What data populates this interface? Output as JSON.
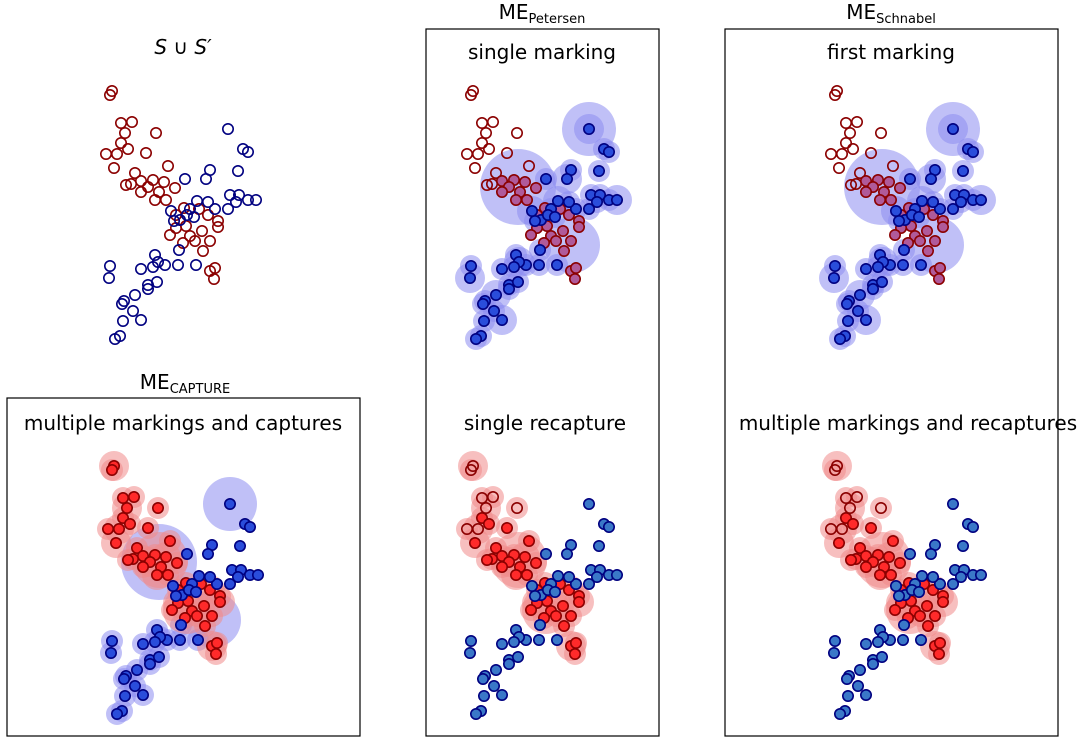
{
  "titles": {
    "union": "S ∪ S′",
    "me_capture": {
      "base": "ME",
      "sub": "CAPTURE"
    },
    "me_petersen": {
      "base": "ME",
      "sub": "Petersen"
    },
    "me_schnabel": {
      "base": "ME",
      "sub": "Schnabel"
    }
  },
  "subtitles": {
    "capture": "multiple markings and captures",
    "petersen_top": "single marking",
    "petersen_bottom": "single recapture",
    "schnabel_top": "first marking",
    "schnabel_bottom": "multiple markings and recaptures"
  },
  "colors": {
    "red_edge": "#8b0000",
    "red_fill": "#ff2a2a",
    "red_halo": "#f08a8a",
    "blue_edge": "#000080",
    "blue_fill": "#2a4ddb",
    "blue_fill_light": "#3a78c8",
    "blue_halo": "#8c8cf0",
    "purple_fill": "#b05a9a",
    "frame": "#000000"
  }
}
